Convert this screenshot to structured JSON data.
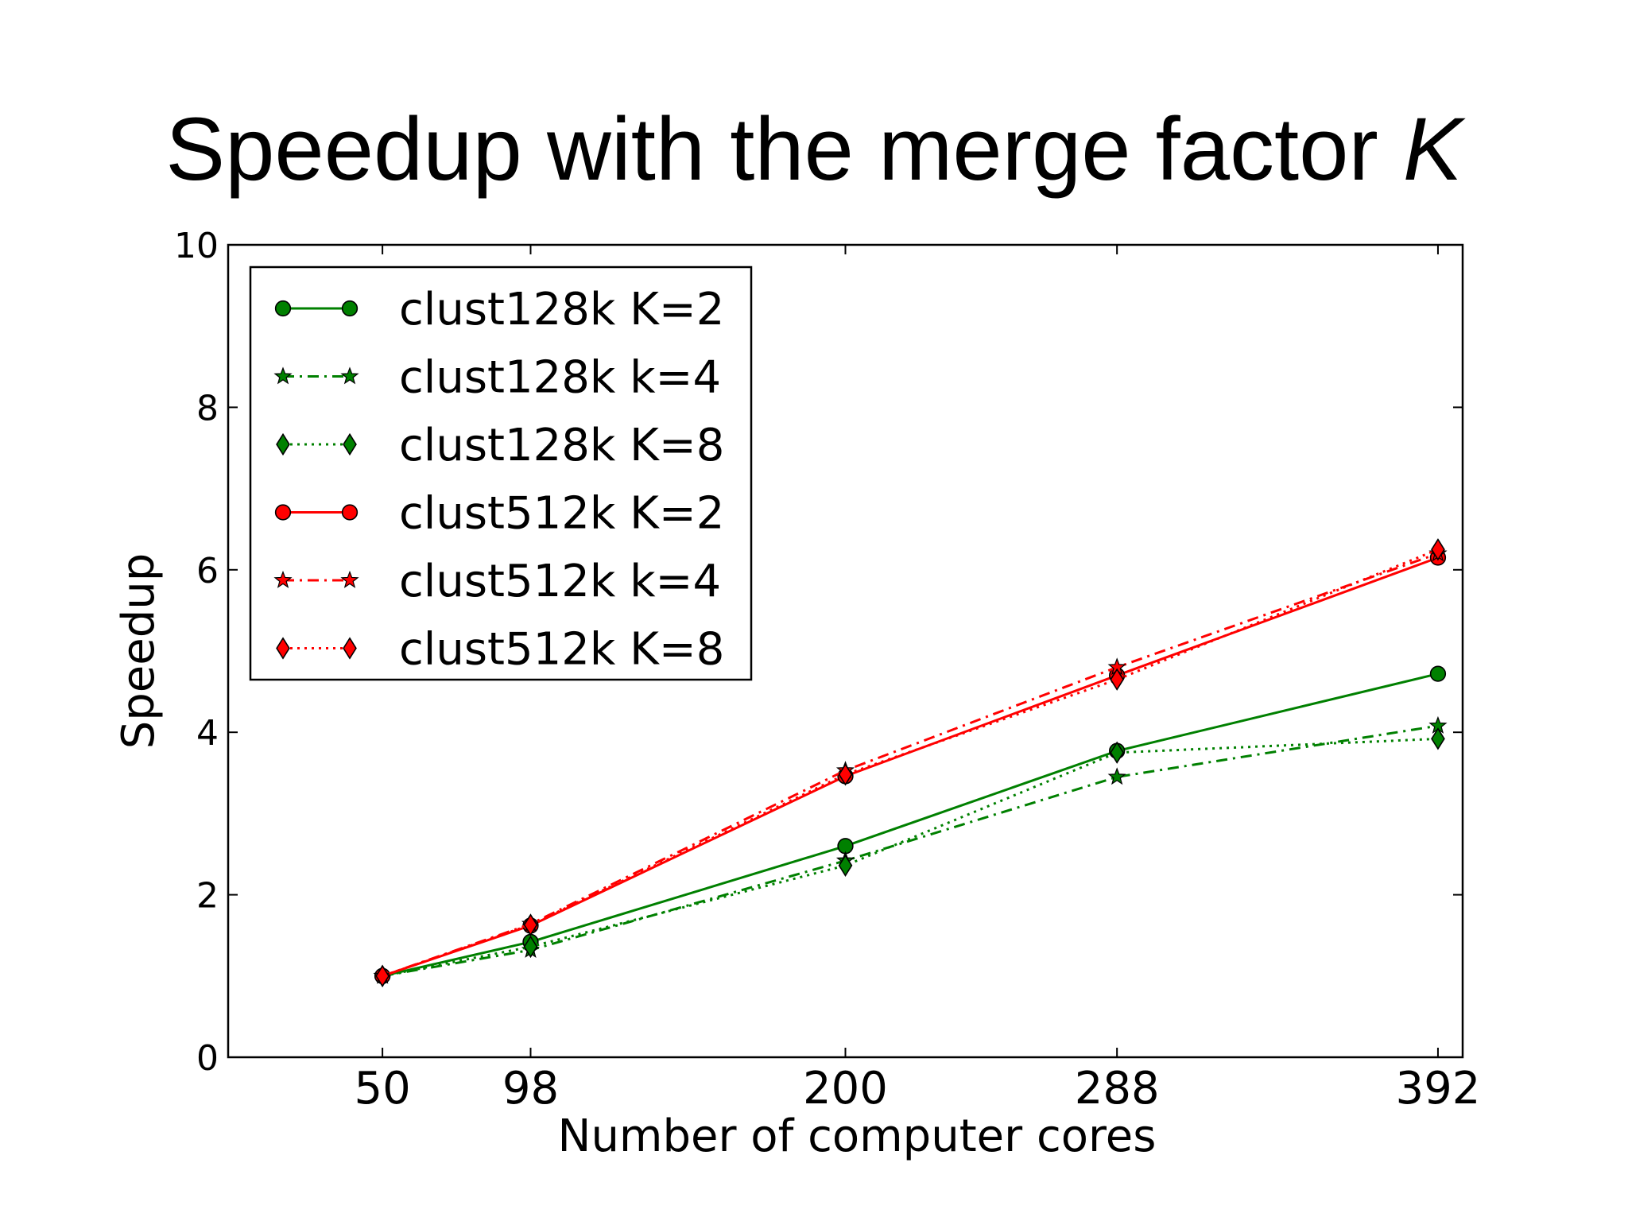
{
  "slide": {
    "title_main": "Speedup with the merge factor",
    "title_italic": "K"
  },
  "chart_data": {
    "type": "line",
    "xlabel": "Number of computer cores",
    "ylabel": "Speedup",
    "x": [
      50,
      98,
      200,
      288,
      392
    ],
    "x_tick_labels": [
      "50",
      "98",
      "200",
      "288",
      "392"
    ],
    "xlim": [
      0,
      400
    ],
    "ylim": [
      0,
      10
    ],
    "y_ticks": [
      0,
      2,
      4,
      6,
      8,
      10
    ],
    "grid": false,
    "legend_position": "top-left",
    "series": [
      {
        "name": "clust128k K=2",
        "color": "#008000",
        "dash": "solid",
        "marker": "circle",
        "values": [
          1.0,
          1.42,
          2.6,
          3.77,
          4.72
        ]
      },
      {
        "name": "clust128k k=4",
        "color": "#008000",
        "dash": "dashdot",
        "marker": "star",
        "values": [
          1.0,
          1.32,
          2.42,
          3.45,
          4.08
        ]
      },
      {
        "name": "clust128k K=8",
        "color": "#008000",
        "dash": "dotted",
        "marker": "diamond",
        "values": [
          1.0,
          1.36,
          2.36,
          3.75,
          3.92
        ]
      },
      {
        "name": "clust512k K=2",
        "color": "#ff0000",
        "dash": "solid",
        "marker": "circle",
        "values": [
          1.0,
          1.62,
          3.46,
          4.7,
          6.15
        ]
      },
      {
        "name": "clust512k k=4",
        "color": "#ff0000",
        "dash": "dashdot",
        "marker": "star",
        "values": [
          1.0,
          1.64,
          3.53,
          4.8,
          6.2
        ]
      },
      {
        "name": "clust512k K=8",
        "color": "#ff0000",
        "dash": "dotted",
        "marker": "diamond",
        "values": [
          1.0,
          1.63,
          3.48,
          4.65,
          6.25
        ]
      }
    ]
  }
}
